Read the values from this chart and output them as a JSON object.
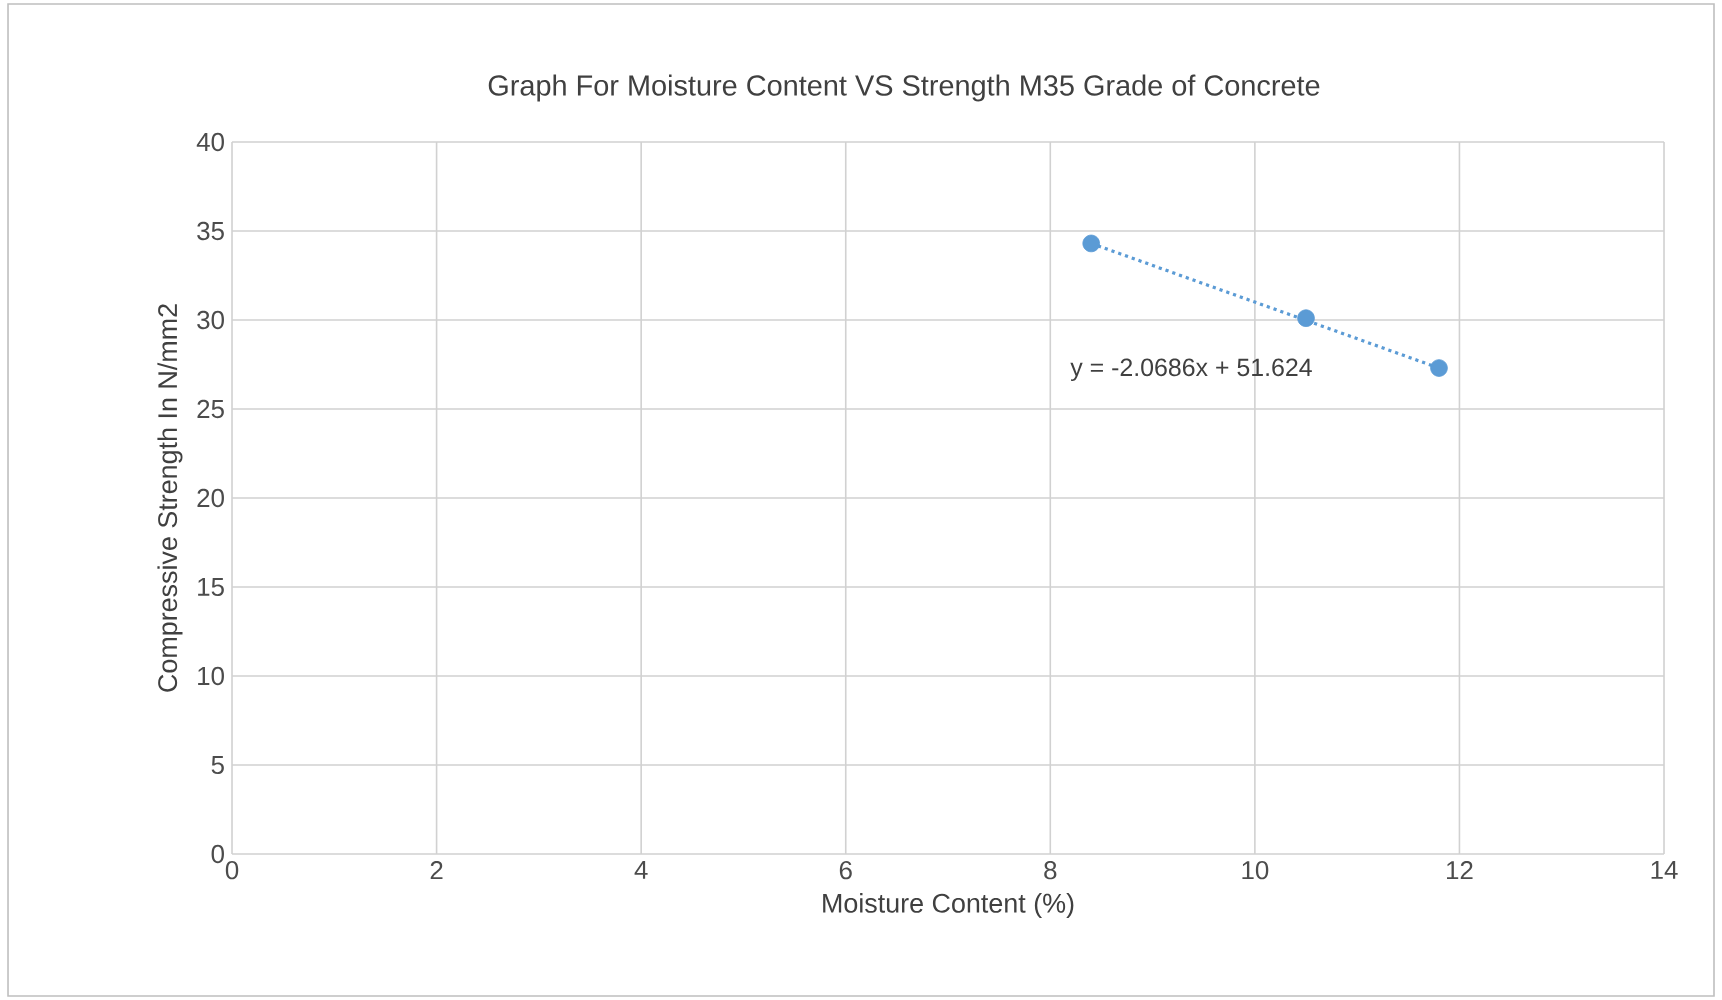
{
  "chart_data": {
    "type": "scatter",
    "title": "Graph For Moisture Content VS Strength M35 Grade of Concrete",
    "xlabel": "Moisture Content (%)",
    "ylabel": "Compressive Strength In N/mm2",
    "xlim": [
      0,
      14
    ],
    "xticks": [
      0,
      2,
      4,
      6,
      8,
      10,
      12,
      14
    ],
    "ylim": [
      0,
      40
    ],
    "yticks": [
      0,
      5,
      10,
      15,
      20,
      25,
      30,
      35,
      40
    ],
    "grid": true,
    "series": [
      {
        "color": "#5b9bd5",
        "marker": "circle",
        "x": [
          8.4,
          10.5,
          11.8
        ],
        "values": [
          34.3,
          30.1,
          27.3
        ]
      },
      {
        "type": "line",
        "color": "#5b9bd5",
        "line_style": "dotted",
        "x": [
          8.4,
          11.8
        ],
        "values": [
          34.3,
          27.3
        ]
      }
    ],
    "annotations": [
      "y = -2.0686x + 51.624"
    ]
  }
}
